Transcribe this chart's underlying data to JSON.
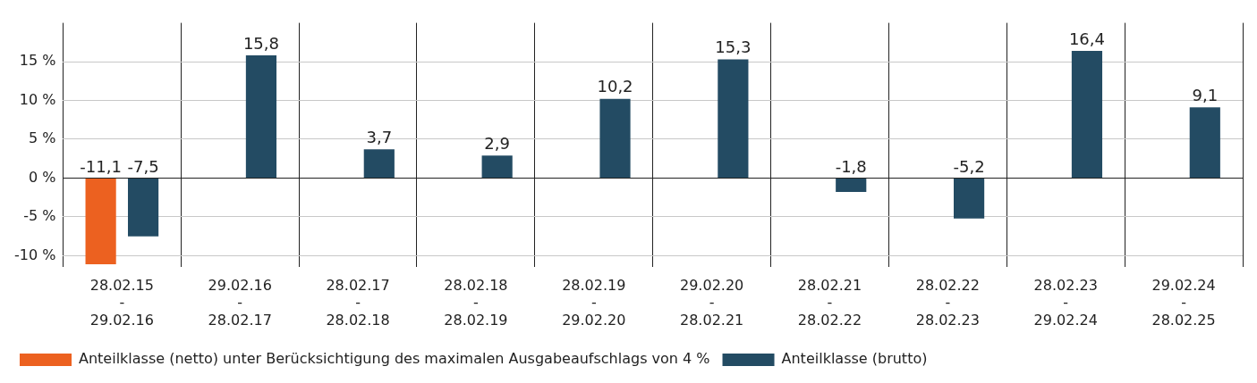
{
  "chart_data": {
    "type": "bar",
    "categories": [
      "28.02.15\n-\n29.02.16",
      "29.02.16\n-\n28.02.17",
      "28.02.17\n-\n28.02.18",
      "28.02.18\n-\n28.02.19",
      "28.02.19\n-\n29.02.20",
      "29.02.20\n-\n28.02.21",
      "28.02.21\n-\n28.02.22",
      "28.02.22\n-\n28.02.23",
      "28.02.23\n-\n29.02.24",
      "29.02.24\n-\n28.02.25"
    ],
    "series": [
      {
        "name": "Anteilklasse (netto) unter Berücksichtigung des maximalen Ausgabeaufschlags von 4 %",
        "color": "#ec6120",
        "values": [
          -11.1,
          null,
          null,
          null,
          null,
          null,
          null,
          null,
          null,
          null
        ],
        "value_labels": [
          "-11,1",
          null,
          null,
          null,
          null,
          null,
          null,
          null,
          null,
          null
        ]
      },
      {
        "name": "Anteilklasse (brutto)",
        "color": "#234b63",
        "values": [
          -7.5,
          15.8,
          3.7,
          2.9,
          10.2,
          15.3,
          -1.8,
          -5.2,
          16.4,
          9.1
        ],
        "value_labels": [
          "-7,5",
          "15,8",
          "3,7",
          "2,9",
          "10,2",
          "15,3",
          "-1,8",
          "-5,2",
          "16,4",
          "9,1"
        ]
      }
    ],
    "ylim": [
      -11.5,
      20
    ],
    "yticks": [
      {
        "value": -10,
        "label": "-10 %"
      },
      {
        "value": -5,
        "label": "-5 %"
      },
      {
        "value": 0,
        "label": "0 %"
      },
      {
        "value": 5,
        "label": "5 %"
      },
      {
        "value": 10,
        "label": "10 %"
      },
      {
        "value": 15,
        "label": "15 %"
      }
    ],
    "grid": true,
    "legend": "bottom left"
  }
}
